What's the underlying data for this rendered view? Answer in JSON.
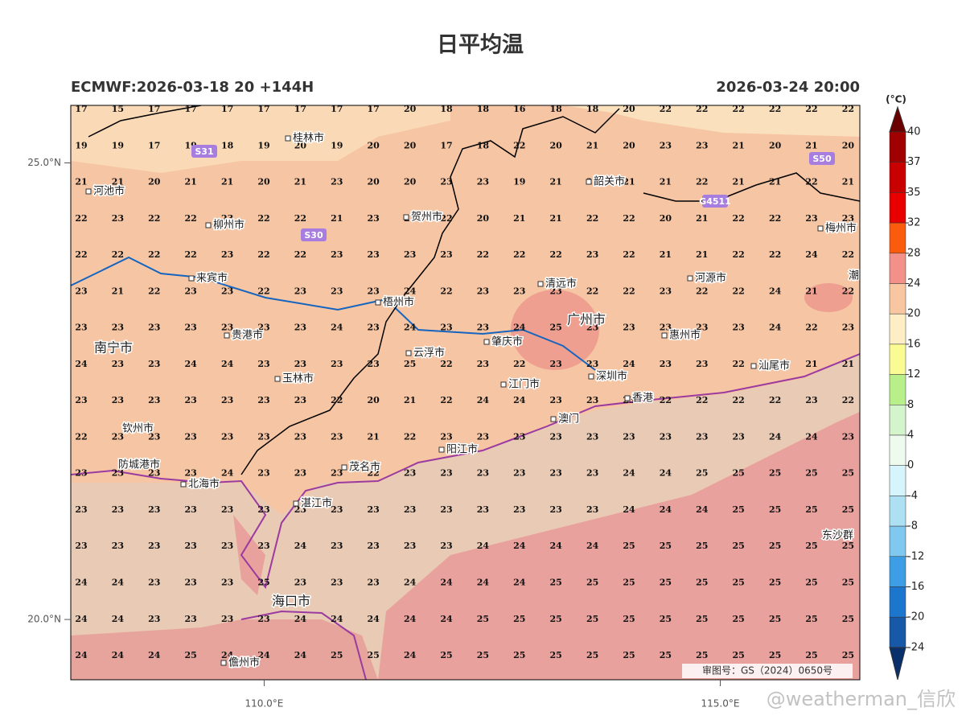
{
  "header": {
    "title": "日平均温",
    "init": "ECMWF:2026-03-18 20 +144H",
    "valid": "2026-03-24 20:00"
  },
  "axes": {
    "xlim": [
      107.88,
      116.53
    ],
    "ylim": [
      19.34,
      25.63
    ],
    "yticks": [
      {
        "value": 25,
        "label": "25.0°N"
      },
      {
        "value": 20,
        "label": "20.0°N"
      }
    ],
    "xticks": [
      {
        "value": 110,
        "label": "110.0°E"
      },
      {
        "value": 115,
        "label": "115.0°E"
      }
    ]
  },
  "grid": {
    "rows": [
      [
        17,
        15,
        17,
        17,
        17,
        17,
        17,
        17,
        17,
        20,
        18,
        18,
        16,
        18,
        18,
        20,
        22,
        22,
        22,
        22,
        22,
        22
      ],
      [
        19,
        19,
        17,
        19,
        18,
        19,
        20,
        19,
        20,
        20,
        17,
        18,
        22,
        20,
        21,
        20,
        23,
        23,
        21,
        20,
        21,
        20
      ],
      [
        21,
        21,
        20,
        21,
        21,
        20,
        21,
        23,
        20,
        20,
        23,
        23,
        19,
        21,
        21,
        21,
        21,
        22,
        21,
        21,
        22,
        21
      ],
      [
        22,
        23,
        22,
        22,
        23,
        22,
        22,
        21,
        23,
        23,
        22,
        20,
        21,
        21,
        22,
        22,
        20,
        21,
        22,
        22,
        23,
        23
      ],
      [
        22,
        22,
        22,
        22,
        23,
        22,
        22,
        23,
        23,
        23,
        23,
        22,
        22,
        22,
        23,
        22,
        21,
        21,
        22,
        22,
        24,
        22
      ],
      [
        23,
        21,
        22,
        23,
        23,
        22,
        23,
        23,
        23,
        24,
        22,
        23,
        23,
        23,
        22,
        22,
        23,
        22,
        22,
        24,
        21,
        22
      ],
      [
        23,
        23,
        23,
        23,
        23,
        23,
        23,
        24,
        23,
        24,
        23,
        23,
        24,
        25,
        23,
        23,
        23,
        23,
        23,
        24,
        22,
        23
      ],
      [
        24,
        23,
        23,
        24,
        24,
        23,
        23,
        23,
        23,
        25,
        22,
        23,
        22,
        23,
        23,
        24,
        23,
        23,
        22,
        22,
        21,
        21
      ],
      [
        23,
        23,
        23,
        23,
        23,
        23,
        23,
        22,
        20,
        21,
        22,
        24,
        24,
        23,
        23,
        23,
        22,
        22,
        22,
        22,
        23,
        22
      ],
      [
        22,
        23,
        23,
        23,
        23,
        23,
        23,
        23,
        21,
        22,
        23,
        23,
        23,
        23,
        23,
        23,
        23,
        23,
        23,
        24,
        24,
        23
      ],
      [
        23,
        23,
        23,
        23,
        24,
        23,
        23,
        23,
        22,
        23,
        23,
        23,
        23,
        23,
        23,
        24,
        24,
        25,
        25,
        25,
        25,
        25
      ],
      [
        23,
        23,
        23,
        23,
        23,
        23,
        23,
        23,
        23,
        23,
        23,
        23,
        23,
        23,
        23,
        24,
        24,
        24,
        25,
        25,
        25,
        25
      ],
      [
        23,
        23,
        23,
        23,
        23,
        23,
        24,
        23,
        23,
        23,
        23,
        24,
        24,
        24,
        24,
        25,
        25,
        25,
        25,
        25,
        25,
        25
      ],
      [
        24,
        24,
        23,
        23,
        23,
        25,
        23,
        23,
        23,
        24,
        24,
        24,
        24,
        25,
        25,
        25,
        25,
        25,
        25,
        25,
        25,
        25
      ],
      [
        24,
        24,
        23,
        23,
        23,
        23,
        24,
        24,
        24,
        24,
        24,
        25,
        25,
        25,
        25,
        25,
        25,
        25,
        25,
        25,
        25,
        25
      ],
      [
        24,
        24,
        24,
        25,
        24,
        24,
        24,
        25,
        25,
        24,
        25,
        25,
        25,
        25,
        25,
        25,
        25,
        25,
        25,
        25,
        25,
        25
      ]
    ]
  },
  "cities": [
    "桂林市",
    "河池市",
    "柳州市",
    "贺州市",
    "韶关市",
    "梅州市",
    "来宾市",
    "梧州市",
    "清远市",
    "河源市",
    "潮",
    "南宁市",
    "贵港市",
    "广州市",
    "惠州市",
    "云浮市",
    "肇庆市",
    "深圳市",
    "汕尾市",
    "玉林市",
    "江门市",
    "香港",
    "澳门",
    "钦州市",
    "阳江市",
    "茂名市",
    "防城港市",
    "北海市",
    "湛江市",
    "东沙群",
    "海口市",
    "儋州市"
  ],
  "roads": [
    "S31",
    "S30",
    "S50",
    "G4511"
  ],
  "colorbar": {
    "unit": "(°C)",
    "ticks": [
      40,
      37,
      35,
      32,
      28,
      24,
      20,
      16,
      12,
      8,
      4,
      0,
      -4,
      -8,
      -12,
      -16,
      -20,
      -24
    ],
    "colors": [
      "#a00000",
      "#c80000",
      "#e80000",
      "#fb5b0c",
      "#f4908a",
      "#f8c7a2",
      "#fdeec6",
      "#fbfb94",
      "#b8ef88",
      "#d4f5cc",
      "#eefaee",
      "#d6f4fb",
      "#aee0f3",
      "#80c8f0",
      "#3d9ee6",
      "#1c76cd",
      "#1758a8"
    ],
    "over": "#6b0000",
    "under": "#08306b"
  },
  "footer": {
    "approval": "审图号：GS（2024）0650号",
    "watermark": "@weatherman_信欣"
  }
}
